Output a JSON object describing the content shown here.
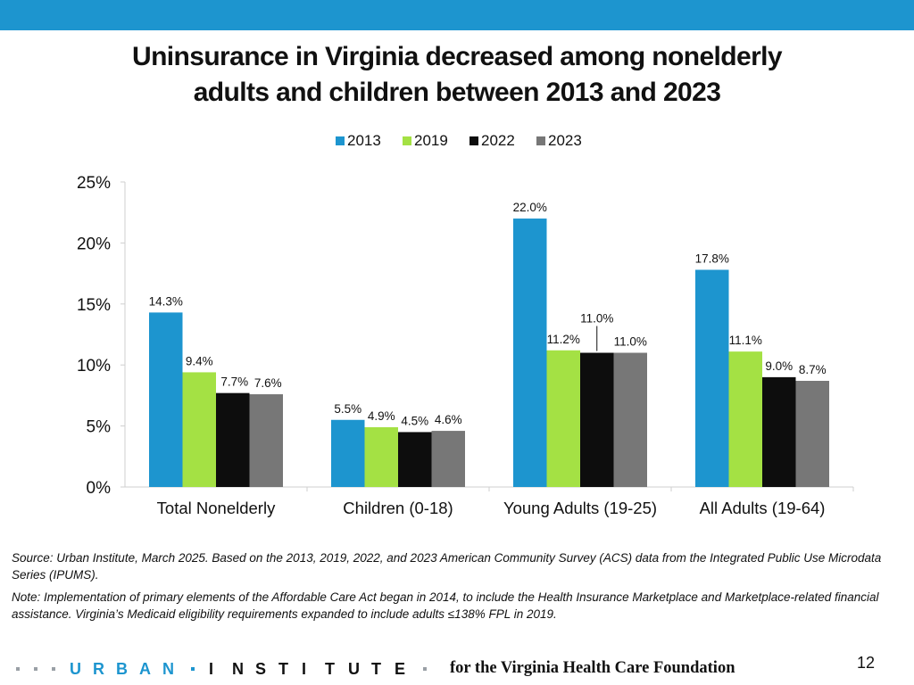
{
  "slide": {
    "title_line1": "Uninsurance in Virginia decreased among nonelderly",
    "title_line2": "adults and children between 2013 and 2023",
    "source": "Source: Urban Institute, March 2025. Based on the 2013, 2019, 2022, and 2023 American Community Survey (ACS) data from the Integrated Public Use Microdata Series (IPUMS).",
    "note": "Note: Implementation of primary elements of the Affordable Care Act began in 2014, to include the Health Insurance Marketplace and Marketplace-related financial assistance. Virginia’s Medicaid eligibility requirements expanded to include adults ≤138% FPL in 2019.",
    "footer_logo_urban": "URBAN",
    "footer_logo_institute": "INSTITUTE",
    "footer_text": "for the Virginia Health Care Foundation",
    "page_number": "12"
  },
  "colors": {
    "accent": "#1d95cf",
    "s2013": "#1d95cf",
    "s2019": "#a4e144",
    "s2022": "#0d0d0d",
    "s2023": "#777777"
  },
  "chart_data": {
    "type": "bar",
    "title": "Uninsurance in Virginia decreased among nonelderly adults and children between 2013 and 2023",
    "xlabel": "",
    "ylabel": "",
    "ylim": [
      0,
      25
    ],
    "yticks": [
      "0%",
      "5%",
      "10%",
      "15%",
      "20%",
      "25%"
    ],
    "ytick_values": [
      0,
      5,
      10,
      15,
      20,
      25
    ],
    "legend_position": "top-center",
    "grid": false,
    "categories": [
      "Total Nonelderly",
      "Children (0-18)",
      "Young Adults (19-25)",
      "All Adults (19-64)"
    ],
    "series": [
      {
        "name": "2013",
        "values": [
          14.3,
          5.5,
          22.0,
          17.8
        ],
        "labels": [
          "14.3%",
          "5.5%",
          "22.0%",
          "17.8%"
        ]
      },
      {
        "name": "2019",
        "values": [
          9.4,
          4.9,
          11.2,
          11.1
        ],
        "labels": [
          "9.4%",
          "4.9%",
          "11.2%",
          "11.1%"
        ]
      },
      {
        "name": "2022",
        "values": [
          7.7,
          4.5,
          11.0,
          9.0
        ],
        "labels": [
          "7.7%",
          "4.5%",
          "11.0%",
          "9.0%"
        ]
      },
      {
        "name": "2023",
        "values": [
          7.6,
          4.6,
          11.0,
          8.7
        ],
        "labels": [
          "7.6%",
          "4.6%",
          "11.0%",
          "8.7%"
        ]
      }
    ]
  }
}
